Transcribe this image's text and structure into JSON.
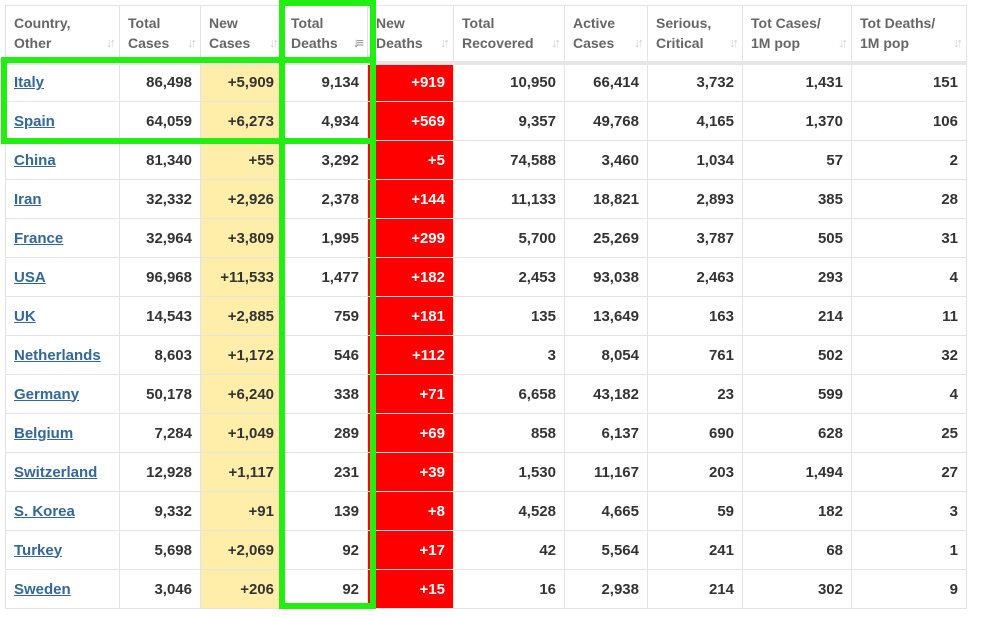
{
  "headers": [
    {
      "line1": "Country,",
      "line2": "Other"
    },
    {
      "line1": "Total",
      "line2": "Cases"
    },
    {
      "line1": "New",
      "line2": "Cases"
    },
    {
      "line1": "Total",
      "line2": "Deaths"
    },
    {
      "line1": "New",
      "line2": "Deaths"
    },
    {
      "line1": "Total",
      "line2": "Recovered"
    },
    {
      "line1": "Active",
      "line2": "Cases"
    },
    {
      "line1": "Serious,",
      "line2": "Critical"
    },
    {
      "line1": "Tot Cases/",
      "line2": "1M pop"
    },
    {
      "line1": "Tot Deaths/",
      "line2": "1M pop"
    }
  ],
  "sort_icon": "sort-arrows-icon",
  "rows": [
    [
      "Italy",
      "86,498",
      "+5,909",
      "9,134",
      "+919",
      "10,950",
      "66,414",
      "3,732",
      "1,431",
      "151"
    ],
    [
      "Spain",
      "64,059",
      "+6,273",
      "4,934",
      "+569",
      "9,357",
      "49,768",
      "4,165",
      "1,370",
      "106"
    ],
    [
      "China",
      "81,340",
      "+55",
      "3,292",
      "+5",
      "74,588",
      "3,460",
      "1,034",
      "57",
      "2"
    ],
    [
      "Iran",
      "32,332",
      "+2,926",
      "2,378",
      "+144",
      "11,133",
      "18,821",
      "2,893",
      "385",
      "28"
    ],
    [
      "France",
      "32,964",
      "+3,809",
      "1,995",
      "+299",
      "5,700",
      "25,269",
      "3,787",
      "505",
      "31"
    ],
    [
      "USA",
      "96,968",
      "+11,533",
      "1,477",
      "+182",
      "2,453",
      "93,038",
      "2,463",
      "293",
      "4"
    ],
    [
      "UK",
      "14,543",
      "+2,885",
      "759",
      "+181",
      "135",
      "13,649",
      "163",
      "214",
      "11"
    ],
    [
      "Netherlands",
      "8,603",
      "+1,172",
      "546",
      "+112",
      "3",
      "8,054",
      "761",
      "502",
      "32"
    ],
    [
      "Germany",
      "50,178",
      "+6,240",
      "338",
      "+71",
      "6,658",
      "43,182",
      "23",
      "599",
      "4"
    ],
    [
      "Belgium",
      "7,284",
      "+1,049",
      "289",
      "+69",
      "858",
      "6,137",
      "690",
      "628",
      "25"
    ],
    [
      "Switzerland",
      "12,928",
      "+1,117",
      "231",
      "+39",
      "1,530",
      "11,167",
      "203",
      "1,494",
      "27"
    ],
    [
      "S. Korea",
      "9,332",
      "+91",
      "139",
      "+8",
      "4,528",
      "4,665",
      "59",
      "182",
      "3"
    ],
    [
      "Turkey",
      "5,698",
      "+2,069",
      "92",
      "+17",
      "42",
      "5,564",
      "241",
      "68",
      "1"
    ],
    [
      "Sweden",
      "3,046",
      "+206",
      "92",
      "+15",
      "16",
      "2,938",
      "214",
      "302",
      "9"
    ]
  ],
  "colors": {
    "new_cases_bg": "#ffeeaa",
    "new_deaths_bg": "#ff0000",
    "highlight": "#22ee11",
    "link": "#336699"
  }
}
